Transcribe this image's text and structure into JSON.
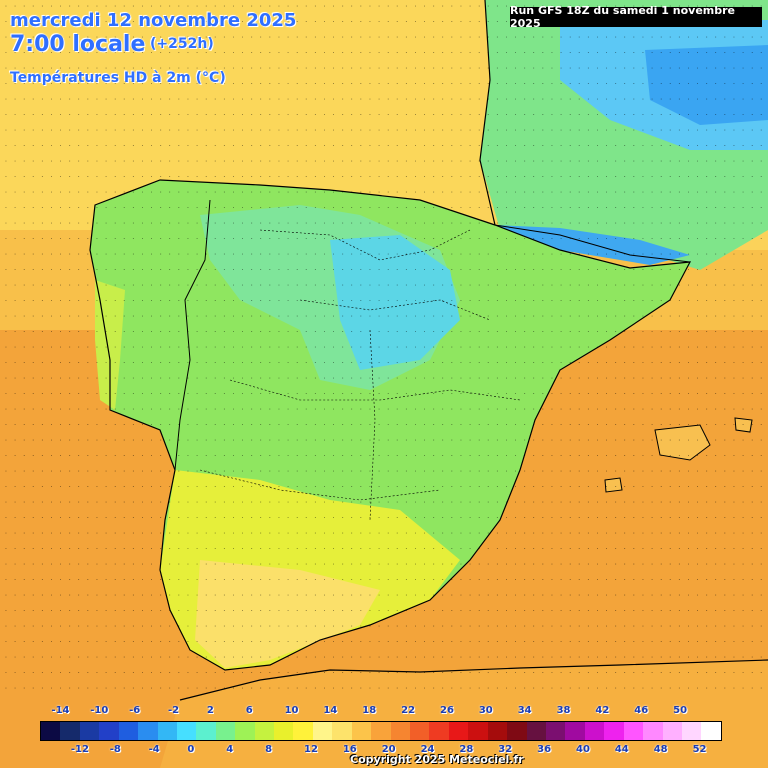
{
  "header": {
    "date": "mercredi 12 novembre 2025",
    "time": "7:00 locale",
    "lead": "(+252h)",
    "variable": "Températures HD à 2m (°C)"
  },
  "run_label": "Run GFS 18Z du samedi 1 novembre 2025",
  "legend": {
    "colors": [
      "#0c0a44",
      "#152a6b",
      "#1a3aa3",
      "#2240c8",
      "#1f5ee0",
      "#2a8df0",
      "#33b7f5",
      "#46dfff",
      "#5cf0cf",
      "#78f18e",
      "#9ef256",
      "#c5f23f",
      "#e9f02c",
      "#fff23a",
      "#fff58a",
      "#fde36b",
      "#fcc44a",
      "#f9a33a",
      "#f68530",
      "#f25f28",
      "#ef3b22",
      "#e81818",
      "#cc1010",
      "#a50c0c",
      "#7f0a14",
      "#661140",
      "#7b0f70",
      "#a00aa0",
      "#cc10cc",
      "#ee22ee",
      "#ff55ff",
      "#ff88ff",
      "#ffb0ff",
      "#ffd6ff",
      "#ffffff"
    ],
    "top_ticks": [
      "-14",
      "-10",
      "-6",
      "-2",
      "2",
      "6",
      "10",
      "14",
      "18",
      "22",
      "26",
      "30",
      "34",
      "38",
      "42",
      "46",
      "50"
    ],
    "bottom_ticks": [
      "-12",
      "-8",
      "-4",
      "0",
      "4",
      "8",
      "12",
      "16",
      "20",
      "24",
      "28",
      "32",
      "36",
      "40",
      "44",
      "48",
      "52"
    ]
  },
  "copyright": "Copyright 2025 Meteociel.fr",
  "colors": {
    "sea_warm": "#f3a43a",
    "land_mild": "#8fe660",
    "cold": "#5ad6f5",
    "title": "#2f6fff"
  }
}
